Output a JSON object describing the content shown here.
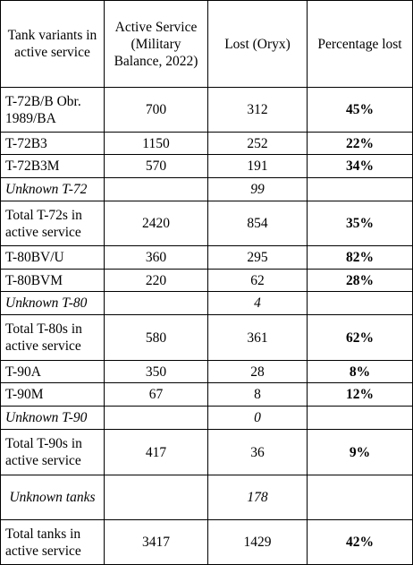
{
  "table": {
    "header": [
      "Tank variants in active service",
      "Active Service (Military Balance, 2022)",
      "Lost (Oryx)",
      "Percentage lost"
    ],
    "rows": [
      [
        "T-72B/B Obr. 1989/BA",
        "700",
        "312",
        "45%"
      ],
      [
        "T-72B3",
        "1150",
        "252",
        "22%"
      ],
      [
        "T-72B3M",
        "570",
        "191",
        "34%"
      ],
      [
        "Unknown T-72",
        null,
        "99",
        null
      ],
      [
        "Total T-72s in active service",
        "2420",
        "854",
        "35%"
      ],
      [
        "T-80BV/U",
        "360",
        "295",
        "82%"
      ],
      [
        "T-80BVM",
        "220",
        "62",
        "28%"
      ],
      [
        "Unknown T-80",
        null,
        "4",
        null
      ],
      [
        "Total T-80s in active service",
        "580",
        "361",
        "62%"
      ],
      [
        "T-90A",
        "350",
        "28",
        "8%"
      ],
      [
        "T-90M",
        "67",
        "8",
        "12%"
      ],
      [
        "Unknown T-90",
        null,
        "0",
        null
      ],
      [
        "Total T-90s in active service",
        "417",
        "36",
        "9%"
      ],
      [
        "Unknown tanks",
        null,
        "178",
        null
      ],
      [
        "Total tanks in active service",
        "3417",
        "1429",
        "42%"
      ]
    ]
  }
}
